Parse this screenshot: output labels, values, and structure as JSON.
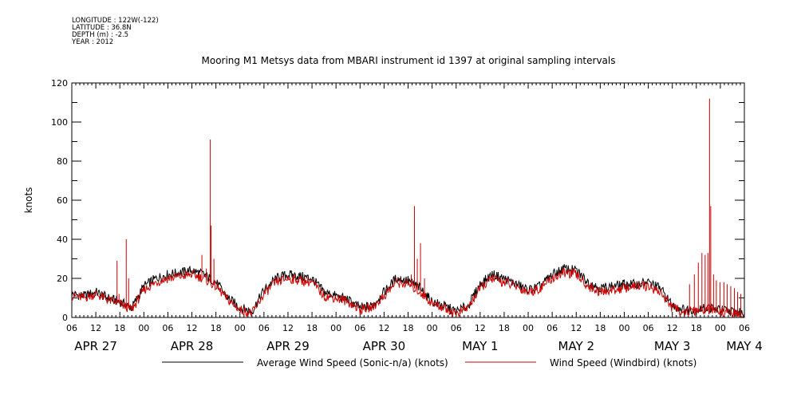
{
  "header": {
    "longitude": "LONGITUDE : 122W(-122)",
    "latitude": "LATITUDE : 36.8N",
    "depth": "DEPTH (m) : -2.5",
    "year": "YEAR : 2012"
  },
  "chart_data": {
    "type": "line",
    "title": "Mooring M1 Metsys data from MBARI instrument id 1397 at original sampling intervals",
    "ylabel": "knots",
    "xlabel": "",
    "ylim": [
      0,
      120
    ],
    "y_ticks": [
      "0",
      "20",
      "40",
      "60",
      "80",
      "100",
      "120"
    ],
    "x_range_hours": [
      0,
      168
    ],
    "x_hour_labels": [
      "06",
      "12",
      "18",
      "00",
      "06",
      "12",
      "18",
      "00",
      "06",
      "12",
      "18",
      "00",
      "06",
      "12",
      "18",
      "00",
      "06",
      "12",
      "18",
      "00",
      "06",
      "12",
      "18",
      "00",
      "06",
      "12",
      "18",
      "00",
      "06"
    ],
    "day_labels": [
      {
        "text": "APR 27",
        "hour": 6
      },
      {
        "text": "APR 28",
        "hour": 30
      },
      {
        "text": "APR 29",
        "hour": 54
      },
      {
        "text": "APR 30",
        "hour": 78
      },
      {
        "text": "MAY  1",
        "hour": 102
      },
      {
        "text": "MAY  2",
        "hour": 126
      },
      {
        "text": "MAY  3",
        "hour": 150
      },
      {
        "text": "MAY  4",
        "hour": 168
      }
    ],
    "x_unit": "hours since Apr 27 06:00, 2012",
    "grid": false,
    "legend_position": "bottom",
    "series": [
      {
        "name": "Average Wind Speed (Sonic-n/a) (knots)",
        "color": "#000000",
        "x": [
          0,
          3,
          6,
          9,
          12,
          15,
          18,
          21,
          24,
          27,
          30,
          33,
          36,
          39,
          42,
          45,
          48,
          51,
          54,
          57,
          60,
          63,
          66,
          69,
          72,
          75,
          78,
          81,
          84,
          87,
          90,
          93,
          96,
          99,
          102,
          105,
          108,
          111,
          114,
          117,
          120,
          123,
          126,
          129,
          132,
          135,
          138,
          141,
          144,
          147,
          150,
          153,
          156,
          159,
          162,
          165,
          168
        ],
        "values": [
          12,
          11,
          13,
          10,
          8,
          5,
          16,
          20,
          22,
          23,
          24,
          22,
          18,
          10,
          5,
          3,
          14,
          20,
          22,
          21,
          20,
          13,
          11,
          9,
          5,
          6,
          13,
          20,
          19,
          15,
          8,
          6,
          3,
          6,
          17,
          22,
          20,
          17,
          14,
          16,
          22,
          25,
          24,
          18,
          15,
          16,
          17,
          17,
          18,
          15,
          6,
          4,
          4,
          5,
          4,
          3,
          2
        ]
      },
      {
        "name": "Wind Speed (Windbird) (knots)",
        "color": "#cc0000",
        "x": [
          0,
          3,
          6,
          9,
          12,
          15,
          18,
          21,
          24,
          27,
          30,
          33,
          36,
          39,
          42,
          45,
          48,
          51,
          54,
          57,
          60,
          63,
          66,
          69,
          72,
          75,
          78,
          81,
          84,
          87,
          90,
          93,
          96,
          99,
          102,
          105,
          108,
          111,
          114,
          117,
          120,
          123,
          126,
          129,
          132,
          135,
          138,
          141,
          144,
          147,
          150,
          153,
          156,
          159,
          162,
          165,
          168
        ],
        "values": [
          11,
          10,
          12,
          9,
          7,
          4,
          14,
          18,
          20,
          21,
          22,
          20,
          16,
          9,
          4,
          2,
          12,
          18,
          20,
          19,
          18,
          11,
          10,
          8,
          4,
          5,
          11,
          18,
          17,
          13,
          7,
          5,
          2,
          5,
          15,
          20,
          18,
          16,
          13,
          15,
          20,
          23,
          22,
          16,
          13,
          14,
          15,
          16,
          16,
          13,
          5,
          3,
          3,
          4,
          3,
          2,
          1
        ],
        "spikes": [
          {
            "x": 11.3,
            "y": 29
          },
          {
            "x": 11.8,
            "y": 12
          },
          {
            "x": 13.6,
            "y": 40
          },
          {
            "x": 14.2,
            "y": 20
          },
          {
            "x": 32.5,
            "y": 32
          },
          {
            "x": 33.6,
            "y": 25
          },
          {
            "x": 34.6,
            "y": 91
          },
          {
            "x": 34.8,
            "y": 47
          },
          {
            "x": 35.5,
            "y": 30
          },
          {
            "x": 84.8,
            "y": 22
          },
          {
            "x": 85.6,
            "y": 57
          },
          {
            "x": 86.3,
            "y": 30
          },
          {
            "x": 87.1,
            "y": 38
          },
          {
            "x": 88.1,
            "y": 20
          },
          {
            "x": 154.3,
            "y": 17
          },
          {
            "x": 155.5,
            "y": 22
          },
          {
            "x": 156.5,
            "y": 28
          },
          {
            "x": 157.4,
            "y": 33
          },
          {
            "x": 158.2,
            "y": 32
          },
          {
            "x": 158.9,
            "y": 33
          },
          {
            "x": 159.3,
            "y": 112
          },
          {
            "x": 159.6,
            "y": 57
          },
          {
            "x": 160.3,
            "y": 22
          },
          {
            "x": 161.0,
            "y": 19
          },
          {
            "x": 161.9,
            "y": 18
          },
          {
            "x": 162.9,
            "y": 18
          },
          {
            "x": 163.7,
            "y": 17
          },
          {
            "x": 164.6,
            "y": 16
          },
          {
            "x": 165.5,
            "y": 15
          },
          {
            "x": 166.3,
            "y": 13
          },
          {
            "x": 167.1,
            "y": 12
          }
        ]
      }
    ]
  }
}
